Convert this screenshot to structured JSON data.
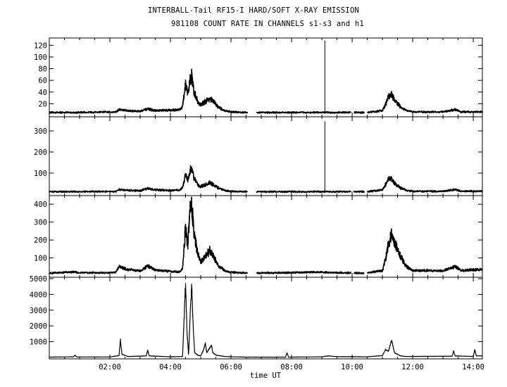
{
  "title_line1": "INTERBALL-Tail RF15-I HARD/SOFT X-RAY EMISSION",
  "title_line2": "981108  COUNT RATE IN CHANNELS s1-s3 and h1",
  "chart_data": {
    "type": "line",
    "xlabel": "time UT",
    "x_range_hours": [
      0,
      14.3
    ],
    "x_tick_labels": [
      "02:00",
      "04:00",
      "06:00",
      "08:00",
      "10:00",
      "12:00",
      "14:00"
    ],
    "x_tick_hours": [
      2,
      4,
      6,
      8,
      10,
      12,
      14
    ],
    "panels": [
      {
        "channel": "s1",
        "ylim": [
          0,
          130
        ],
        "y_ticks": [
          20,
          40,
          60,
          80,
          100,
          120
        ],
        "y_tick_labels": [
          "20",
          "40",
          "60",
          "80",
          "100",
          "120"
        ],
        "baseline": 5,
        "spike": {
          "time": 9.1,
          "value": 128
        },
        "points": [
          [
            0.0,
            5
          ],
          [
            1.0,
            5
          ],
          [
            2.2,
            6
          ],
          [
            2.3,
            10
          ],
          [
            2.6,
            8
          ],
          [
            3.0,
            7
          ],
          [
            3.25,
            11
          ],
          [
            3.5,
            8
          ],
          [
            4.0,
            9
          ],
          [
            4.3,
            10
          ],
          [
            4.4,
            15
          ],
          [
            4.5,
            53
          ],
          [
            4.57,
            35
          ],
          [
            4.65,
            62
          ],
          [
            4.7,
            68
          ],
          [
            4.78,
            40
          ],
          [
            4.9,
            24
          ],
          [
            5.0,
            17
          ],
          [
            5.1,
            22
          ],
          [
            5.3,
            29
          ],
          [
            5.45,
            22
          ],
          [
            5.6,
            13
          ],
          [
            5.8,
            8
          ],
          [
            6.0,
            6
          ],
          [
            6.5,
            5
          ],
          [
            7.0,
            5
          ],
          [
            8.0,
            5
          ],
          [
            9.0,
            5
          ],
          [
            9.5,
            5
          ],
          [
            10.5,
            5
          ],
          [
            11.0,
            8
          ],
          [
            11.1,
            18
          ],
          [
            11.2,
            32
          ],
          [
            11.3,
            36
          ],
          [
            11.4,
            26
          ],
          [
            11.6,
            14
          ],
          [
            11.8,
            8
          ],
          [
            12.0,
            6
          ],
          [
            13.0,
            6
          ],
          [
            13.4,
            10
          ],
          [
            13.6,
            6
          ],
          [
            14.2,
            6
          ]
        ],
        "gaps": [
          [
            6.55,
            6.85
          ],
          [
            9.95,
            10.05
          ],
          [
            10.4,
            10.5
          ]
        ]
      },
      {
        "channel": "s2",
        "ylim": [
          0,
          360
        ],
        "y_ticks": [
          100,
          200,
          300
        ],
        "y_tick_labels": [
          "100",
          "200",
          "300"
        ],
        "baseline": 12,
        "spike": {
          "time": 9.1,
          "value": 345
        },
        "points": [
          [
            0.0,
            12
          ],
          [
            1.0,
            12
          ],
          [
            2.2,
            13
          ],
          [
            2.3,
            22
          ],
          [
            2.6,
            18
          ],
          [
            3.0,
            16
          ],
          [
            3.25,
            28
          ],
          [
            3.5,
            20
          ],
          [
            4.0,
            18
          ],
          [
            4.3,
            20
          ],
          [
            4.4,
            30
          ],
          [
            4.5,
            95
          ],
          [
            4.57,
            65
          ],
          [
            4.65,
            115
          ],
          [
            4.7,
            125
          ],
          [
            4.78,
            75
          ],
          [
            4.9,
            45
          ],
          [
            5.0,
            36
          ],
          [
            5.1,
            42
          ],
          [
            5.3,
            55
          ],
          [
            5.45,
            42
          ],
          [
            5.6,
            28
          ],
          [
            5.8,
            18
          ],
          [
            6.0,
            14
          ],
          [
            6.5,
            12
          ],
          [
            7.0,
            12
          ],
          [
            8.0,
            12
          ],
          [
            9.0,
            12
          ],
          [
            9.5,
            12
          ],
          [
            10.5,
            12
          ],
          [
            11.0,
            20
          ],
          [
            11.1,
            45
          ],
          [
            11.2,
            72
          ],
          [
            11.3,
            70
          ],
          [
            11.4,
            52
          ],
          [
            11.6,
            30
          ],
          [
            11.8,
            18
          ],
          [
            12.0,
            14
          ],
          [
            13.0,
            14
          ],
          [
            13.4,
            22
          ],
          [
            13.6,
            14
          ],
          [
            14.2,
            14
          ]
        ],
        "gaps": [
          [
            6.55,
            6.85
          ],
          [
            9.95,
            10.05
          ],
          [
            10.4,
            10.5
          ]
        ]
      },
      {
        "channel": "s3",
        "ylim": [
          0,
          440
        ],
        "y_ticks": [
          100,
          200,
          300,
          400
        ],
        "y_tick_labels": [
          "100",
          "200",
          "300",
          "400"
        ],
        "baseline": 15,
        "points": [
          [
            0.0,
            15
          ],
          [
            0.8,
            22
          ],
          [
            1.0,
            17
          ],
          [
            2.0,
            17
          ],
          [
            2.2,
            22
          ],
          [
            2.3,
            50
          ],
          [
            2.6,
            35
          ],
          [
            3.0,
            28
          ],
          [
            3.25,
            55
          ],
          [
            3.5,
            32
          ],
          [
            4.0,
            25
          ],
          [
            4.3,
            22
          ],
          [
            4.4,
            40
          ],
          [
            4.5,
            270
          ],
          [
            4.57,
            160
          ],
          [
            4.65,
            360
          ],
          [
            4.7,
            420
          ],
          [
            4.78,
            230
          ],
          [
            4.9,
            130
          ],
          [
            5.0,
            80
          ],
          [
            5.1,
            95
          ],
          [
            5.3,
            140
          ],
          [
            5.45,
            100
          ],
          [
            5.6,
            55
          ],
          [
            5.8,
            28
          ],
          [
            6.0,
            20
          ],
          [
            6.5,
            15
          ],
          [
            7.0,
            16
          ],
          [
            8.0,
            18
          ],
          [
            9.0,
            20
          ],
          [
            9.5,
            17
          ],
          [
            10.5,
            15
          ],
          [
            11.0,
            30
          ],
          [
            11.1,
            90
          ],
          [
            11.2,
            180
          ],
          [
            11.3,
            225
          ],
          [
            11.4,
            190
          ],
          [
            11.6,
            110
          ],
          [
            11.8,
            50
          ],
          [
            12.0,
            30
          ],
          [
            13.0,
            28
          ],
          [
            13.4,
            52
          ],
          [
            13.6,
            30
          ],
          [
            14.2,
            35
          ]
        ],
        "gaps": [
          [
            6.55,
            6.85
          ],
          [
            9.95,
            10.05
          ],
          [
            10.4,
            10.5
          ]
        ]
      },
      {
        "channel": "h1",
        "ylim": [
          0,
          5000
        ],
        "y_ticks": [
          1000,
          2000,
          3000,
          4000,
          5000
        ],
        "y_tick_labels": [
          "1000",
          "2000",
          "3000",
          "4000",
          "5000"
        ],
        "baseline": 20,
        "points": [
          [
            0.0,
            20
          ],
          [
            0.8,
            40
          ],
          [
            0.85,
            150
          ],
          [
            0.9,
            30
          ],
          [
            2.0,
            30
          ],
          [
            2.3,
            120
          ],
          [
            2.35,
            1100
          ],
          [
            2.4,
            200
          ],
          [
            2.6,
            60
          ],
          [
            3.2,
            100
          ],
          [
            3.25,
            450
          ],
          [
            3.3,
            100
          ],
          [
            4.0,
            40
          ],
          [
            4.4,
            60
          ],
          [
            4.5,
            4700
          ],
          [
            4.55,
            1500
          ],
          [
            4.6,
            200
          ],
          [
            4.65,
            2500
          ],
          [
            4.7,
            4600
          ],
          [
            4.75,
            2000
          ],
          [
            4.8,
            300
          ],
          [
            4.9,
            150
          ],
          [
            5.0,
            100
          ],
          [
            5.1,
            500
          ],
          [
            5.15,
            900
          ],
          [
            5.2,
            300
          ],
          [
            5.3,
            600
          ],
          [
            5.35,
            800
          ],
          [
            5.4,
            300
          ],
          [
            5.5,
            150
          ],
          [
            5.8,
            60
          ],
          [
            6.0,
            40
          ],
          [
            6.5,
            20
          ],
          [
            7.8,
            20
          ],
          [
            7.85,
            300
          ],
          [
            7.9,
            20
          ],
          [
            9.0,
            40
          ],
          [
            9.2,
            100
          ],
          [
            9.5,
            50
          ],
          [
            10.5,
            40
          ],
          [
            11.0,
            120
          ],
          [
            11.1,
            500
          ],
          [
            11.2,
            400
          ],
          [
            11.3,
            1100
          ],
          [
            11.35,
            700
          ],
          [
            11.4,
            300
          ],
          [
            11.6,
            100
          ],
          [
            11.8,
            60
          ],
          [
            13.3,
            80
          ],
          [
            13.35,
            400
          ],
          [
            13.4,
            100
          ],
          [
            14.0,
            60
          ],
          [
            14.05,
            500
          ],
          [
            14.1,
            100
          ],
          [
            14.2,
            100
          ]
        ],
        "gaps": []
      }
    ]
  }
}
